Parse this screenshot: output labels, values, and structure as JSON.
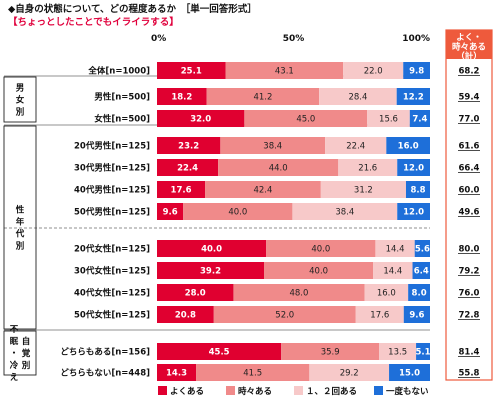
{
  "header": {
    "title": "◆自身の状態について、どの程度あるか　［単一回答形式］",
    "subtitle": "【ちょっとしたことでもイライラする】"
  },
  "summary_header": [
    "よく・",
    "時々ある",
    "（計）"
  ],
  "colors": {
    "yoku": "#e00030",
    "tokidoki": "#f08a8a",
    "ichinido": "#f7c9c9",
    "nai": "#1e6fd9",
    "summary_head_bg": "#ee5a3c",
    "summary_border": "#ee5a3c",
    "group_divider": "#6b6b6b"
  },
  "chart_data": {
    "type": "bar",
    "orientation": "horizontal",
    "stacked": true,
    "xlim": [
      0,
      100
    ],
    "xticks": [
      "0%",
      "50%",
      "100%"
    ],
    "series": [
      {
        "name": "よくある",
        "color": "#e00030"
      },
      {
        "name": "時々ある",
        "color": "#f08a8a"
      },
      {
        "name": "１、２回ある",
        "color": "#f7c9c9"
      },
      {
        "name": "一度もない",
        "color": "#1e6fd9"
      }
    ],
    "groups": [
      {
        "label": "",
        "rows": [
          {
            "label": "全体[n=1000]",
            "values": [
              25.1,
              43.1,
              22.0,
              9.8
            ],
            "total": "68.2"
          }
        ]
      },
      {
        "label": "男女別",
        "rows": [
          {
            "label": "男性[n=500]",
            "values": [
              18.2,
              41.2,
              28.4,
              12.2
            ],
            "total": "59.4"
          },
          {
            "label": "女性[n=500]",
            "values": [
              32.0,
              45.0,
              15.6,
              7.4
            ],
            "total": "77.0"
          }
        ]
      },
      {
        "label": "性年代別",
        "rows": [
          {
            "label": "20代男性[n=125]",
            "values": [
              23.2,
              38.4,
              22.4,
              16.0
            ],
            "total": "61.6"
          },
          {
            "label": "30代男性[n=125]",
            "values": [
              22.4,
              44.0,
              21.6,
              12.0
            ],
            "total": "66.4"
          },
          {
            "label": "40代男性[n=125]",
            "values": [
              17.6,
              42.4,
              31.2,
              8.8
            ],
            "total": "60.0"
          },
          {
            "label": "50代男性[n=125]",
            "values": [
              9.6,
              40.0,
              38.4,
              12.0
            ],
            "total": "49.6"
          },
          {
            "label": "20代女性[n=125]",
            "values": [
              40.0,
              40.0,
              14.4,
              5.6
            ],
            "total": "80.0"
          },
          {
            "label": "30代女性[n=125]",
            "values": [
              39.2,
              40.0,
              14.4,
              6.4
            ],
            "total": "79.2"
          },
          {
            "label": "40代女性[n=125]",
            "values": [
              28.0,
              48.0,
              16.0,
              8.0
            ],
            "total": "76.0"
          },
          {
            "label": "50代女性[n=125]",
            "values": [
              20.8,
              52.0,
              17.6,
              9.6
            ],
            "total": "72.8"
          }
        ]
      },
      {
        "label": "自覚別 不眠・冷え",
        "rows": [
          {
            "label": "どちらもある[n=156]",
            "values": [
              45.5,
              35.9,
              13.5,
              5.1
            ],
            "total": "81.4"
          },
          {
            "label": "どちらもない[n=448]",
            "values": [
              14.3,
              41.5,
              29.2,
              15.0
            ],
            "total": "55.8"
          }
        ]
      }
    ]
  }
}
